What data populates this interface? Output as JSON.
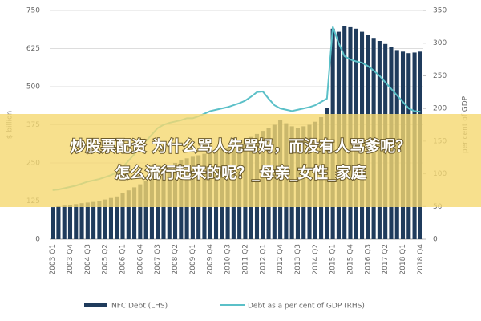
{
  "chart_data": {
    "type": "bar_line",
    "overlay_title": [
      "炒股票配资 为什么骂人先骂妈，而没有人骂爹呢？",
      "怎么流行起来的呢？_母亲_女性_家庭"
    ],
    "ylabel": "$ billion",
    "y2label": "per cent of GDP",
    "categories": [
      "2003 Q1",
      null,
      null,
      "2003 Q4",
      null,
      null,
      "2004 Q3",
      null,
      null,
      "2005 Q2",
      null,
      null,
      "2006 Q1",
      null,
      null,
      "2006 Q4",
      null,
      null,
      "2007 Q3",
      null,
      null,
      "2008 Q2",
      null,
      null,
      "2009 Q1",
      null,
      null,
      "2009 Q4",
      null,
      null,
      "2010 Q3",
      null,
      null,
      "2011 Q2",
      null,
      null,
      "2012 Q1",
      null,
      null,
      "2012 Q4",
      null,
      null,
      "2013 Q3",
      null,
      null,
      "2014 Q2",
      null,
      null,
      "2015 Q1",
      null,
      null,
      "2015 Q4",
      null,
      null,
      "2016 Q3",
      null,
      null,
      "2017 Q2",
      null,
      null,
      "2018 Q1",
      null,
      null,
      "2018 Q4"
    ],
    "series": [
      {
        "name": "NFC Debt (LHS)",
        "color": "#1f3b5c",
        "kind": "bar",
        "values": [
          105,
          108,
          110,
          112,
          115,
          118,
          120,
          122,
          125,
          130,
          135,
          140,
          150,
          160,
          170,
          180,
          190,
          200,
          215,
          225,
          240,
          250,
          260,
          265,
          270,
          275,
          280,
          285,
          290,
          295,
          300,
          305,
          315,
          325,
          335,
          345,
          355,
          365,
          375,
          390,
          380,
          370,
          365,
          370,
          375,
          385,
          400,
          430,
          690,
          680,
          700,
          695,
          690,
          680,
          670,
          660,
          650,
          640,
          630,
          620,
          615,
          610,
          612,
          615
        ]
      },
      {
        "name": "Debt as a per cent of GDP (RHS)",
        "color": "#5bc0c8",
        "kind": "line",
        "axis": "y2",
        "values": [
          75,
          76,
          78,
          80,
          82,
          85,
          88,
          90,
          92,
          95,
          98,
          102,
          110,
          120,
          130,
          140,
          150,
          160,
          170,
          175,
          178,
          180,
          182,
          185,
          185,
          188,
          192,
          196,
          198,
          200,
          202,
          205,
          208,
          212,
          218,
          225,
          226,
          215,
          205,
          200,
          198,
          196,
          198,
          200,
          202,
          205,
          210,
          215,
          325,
          300,
          280,
          275,
          272,
          270,
          265,
          258,
          250,
          240,
          230,
          220,
          210,
          200,
          196,
          195
        ]
      }
    ],
    "ylim": [
      0,
      750
    ],
    "yticks": [
      0,
      125,
      250,
      375,
      500,
      625,
      750
    ],
    "y2lim": [
      0,
      350
    ],
    "y2ticks": [
      0,
      50,
      100,
      150,
      200,
      250,
      300,
      350
    ],
    "grid": true
  }
}
